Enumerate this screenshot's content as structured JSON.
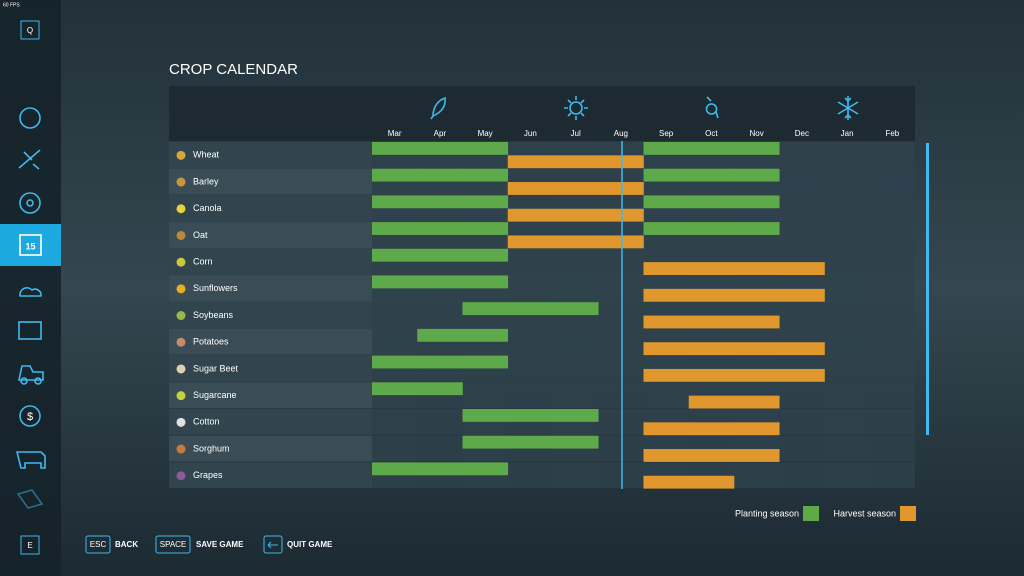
{
  "fps": "60 FPS",
  "sidebar": {
    "top_key": "Q",
    "bottom_key": "E"
  },
  "header": {
    "title": "CROP CALENDAR"
  },
  "months": [
    "Mar",
    "Apr",
    "May",
    "Jun",
    "Jul",
    "Aug",
    "Sep",
    "Oct",
    "Nov",
    "Dec",
    "Jan",
    "Feb"
  ],
  "crops": [
    {
      "name": "Wheat",
      "planting": [
        "Mar",
        "Apr",
        "May",
        "Sep",
        "Oct",
        "Nov"
      ],
      "harvest": [
        "Jun",
        "Jul",
        "Aug"
      ]
    },
    {
      "name": "Barley",
      "planting": [
        "Mar",
        "Apr",
        "May",
        "Sep",
        "Oct",
        "Nov"
      ],
      "harvest": [
        "Jun",
        "Jul",
        "Aug"
      ]
    },
    {
      "name": "Canola",
      "planting": [
        "Mar",
        "Apr",
        "May",
        "Sep",
        "Oct",
        "Nov"
      ],
      "harvest": [
        "Jun",
        "Jul",
        "Aug"
      ]
    },
    {
      "name": "Oat",
      "planting": [
        "Mar",
        "Apr",
        "May",
        "Sep",
        "Oct",
        "Nov"
      ],
      "harvest": [
        "Jun",
        "Jul",
        "Aug"
      ]
    },
    {
      "name": "Corn",
      "planting": [
        "Mar",
        "Apr",
        "May"
      ],
      "harvest": [
        "Sep",
        "Oct",
        "Nov",
        "Dec"
      ]
    },
    {
      "name": "Sunflowers",
      "planting": [
        "Mar",
        "Apr",
        "May"
      ],
      "harvest": [
        "Sep",
        "Oct",
        "Nov",
        "Dec"
      ]
    },
    {
      "name": "Soybeans",
      "planting": [
        "May",
        "Jun",
        "Jul"
      ],
      "harvest": [
        "Sep",
        "Oct",
        "Nov"
      ]
    },
    {
      "name": "Potatoes",
      "planting": [
        "Apr",
        "May"
      ],
      "harvest": [
        "Sep",
        "Oct",
        "Nov",
        "Dec"
      ]
    },
    {
      "name": "Sugar Beet",
      "planting": [
        "Mar",
        "Apr",
        "May"
      ],
      "harvest": [
        "Sep",
        "Oct",
        "Nov",
        "Dec"
      ]
    },
    {
      "name": "Sugarcane",
      "planting": [
        "Mar",
        "Apr"
      ],
      "harvest": [
        "Oct",
        "Nov"
      ]
    },
    {
      "name": "Cotton",
      "planting": [
        "May",
        "Jun",
        "Jul"
      ],
      "harvest": [
        "Sep",
        "Oct",
        "Nov"
      ]
    },
    {
      "name": "Sorghum",
      "planting": [
        "May",
        "Jun",
        "Jul"
      ],
      "harvest": [
        "Sep",
        "Oct",
        "Nov"
      ]
    },
    {
      "name": "Grapes",
      "planting": [
        "Mar",
        "Apr",
        "May"
      ],
      "harvest": [
        "Sep",
        "Oct"
      ]
    }
  ],
  "legend": {
    "planting": "Planting season",
    "harvest": "Harvest season"
  },
  "buttons": [
    {
      "key": "ESC",
      "label": "BACK"
    },
    {
      "key": "SPACE",
      "label": "SAVE GAME"
    },
    {
      "label": "QUIT GAME"
    }
  ]
}
